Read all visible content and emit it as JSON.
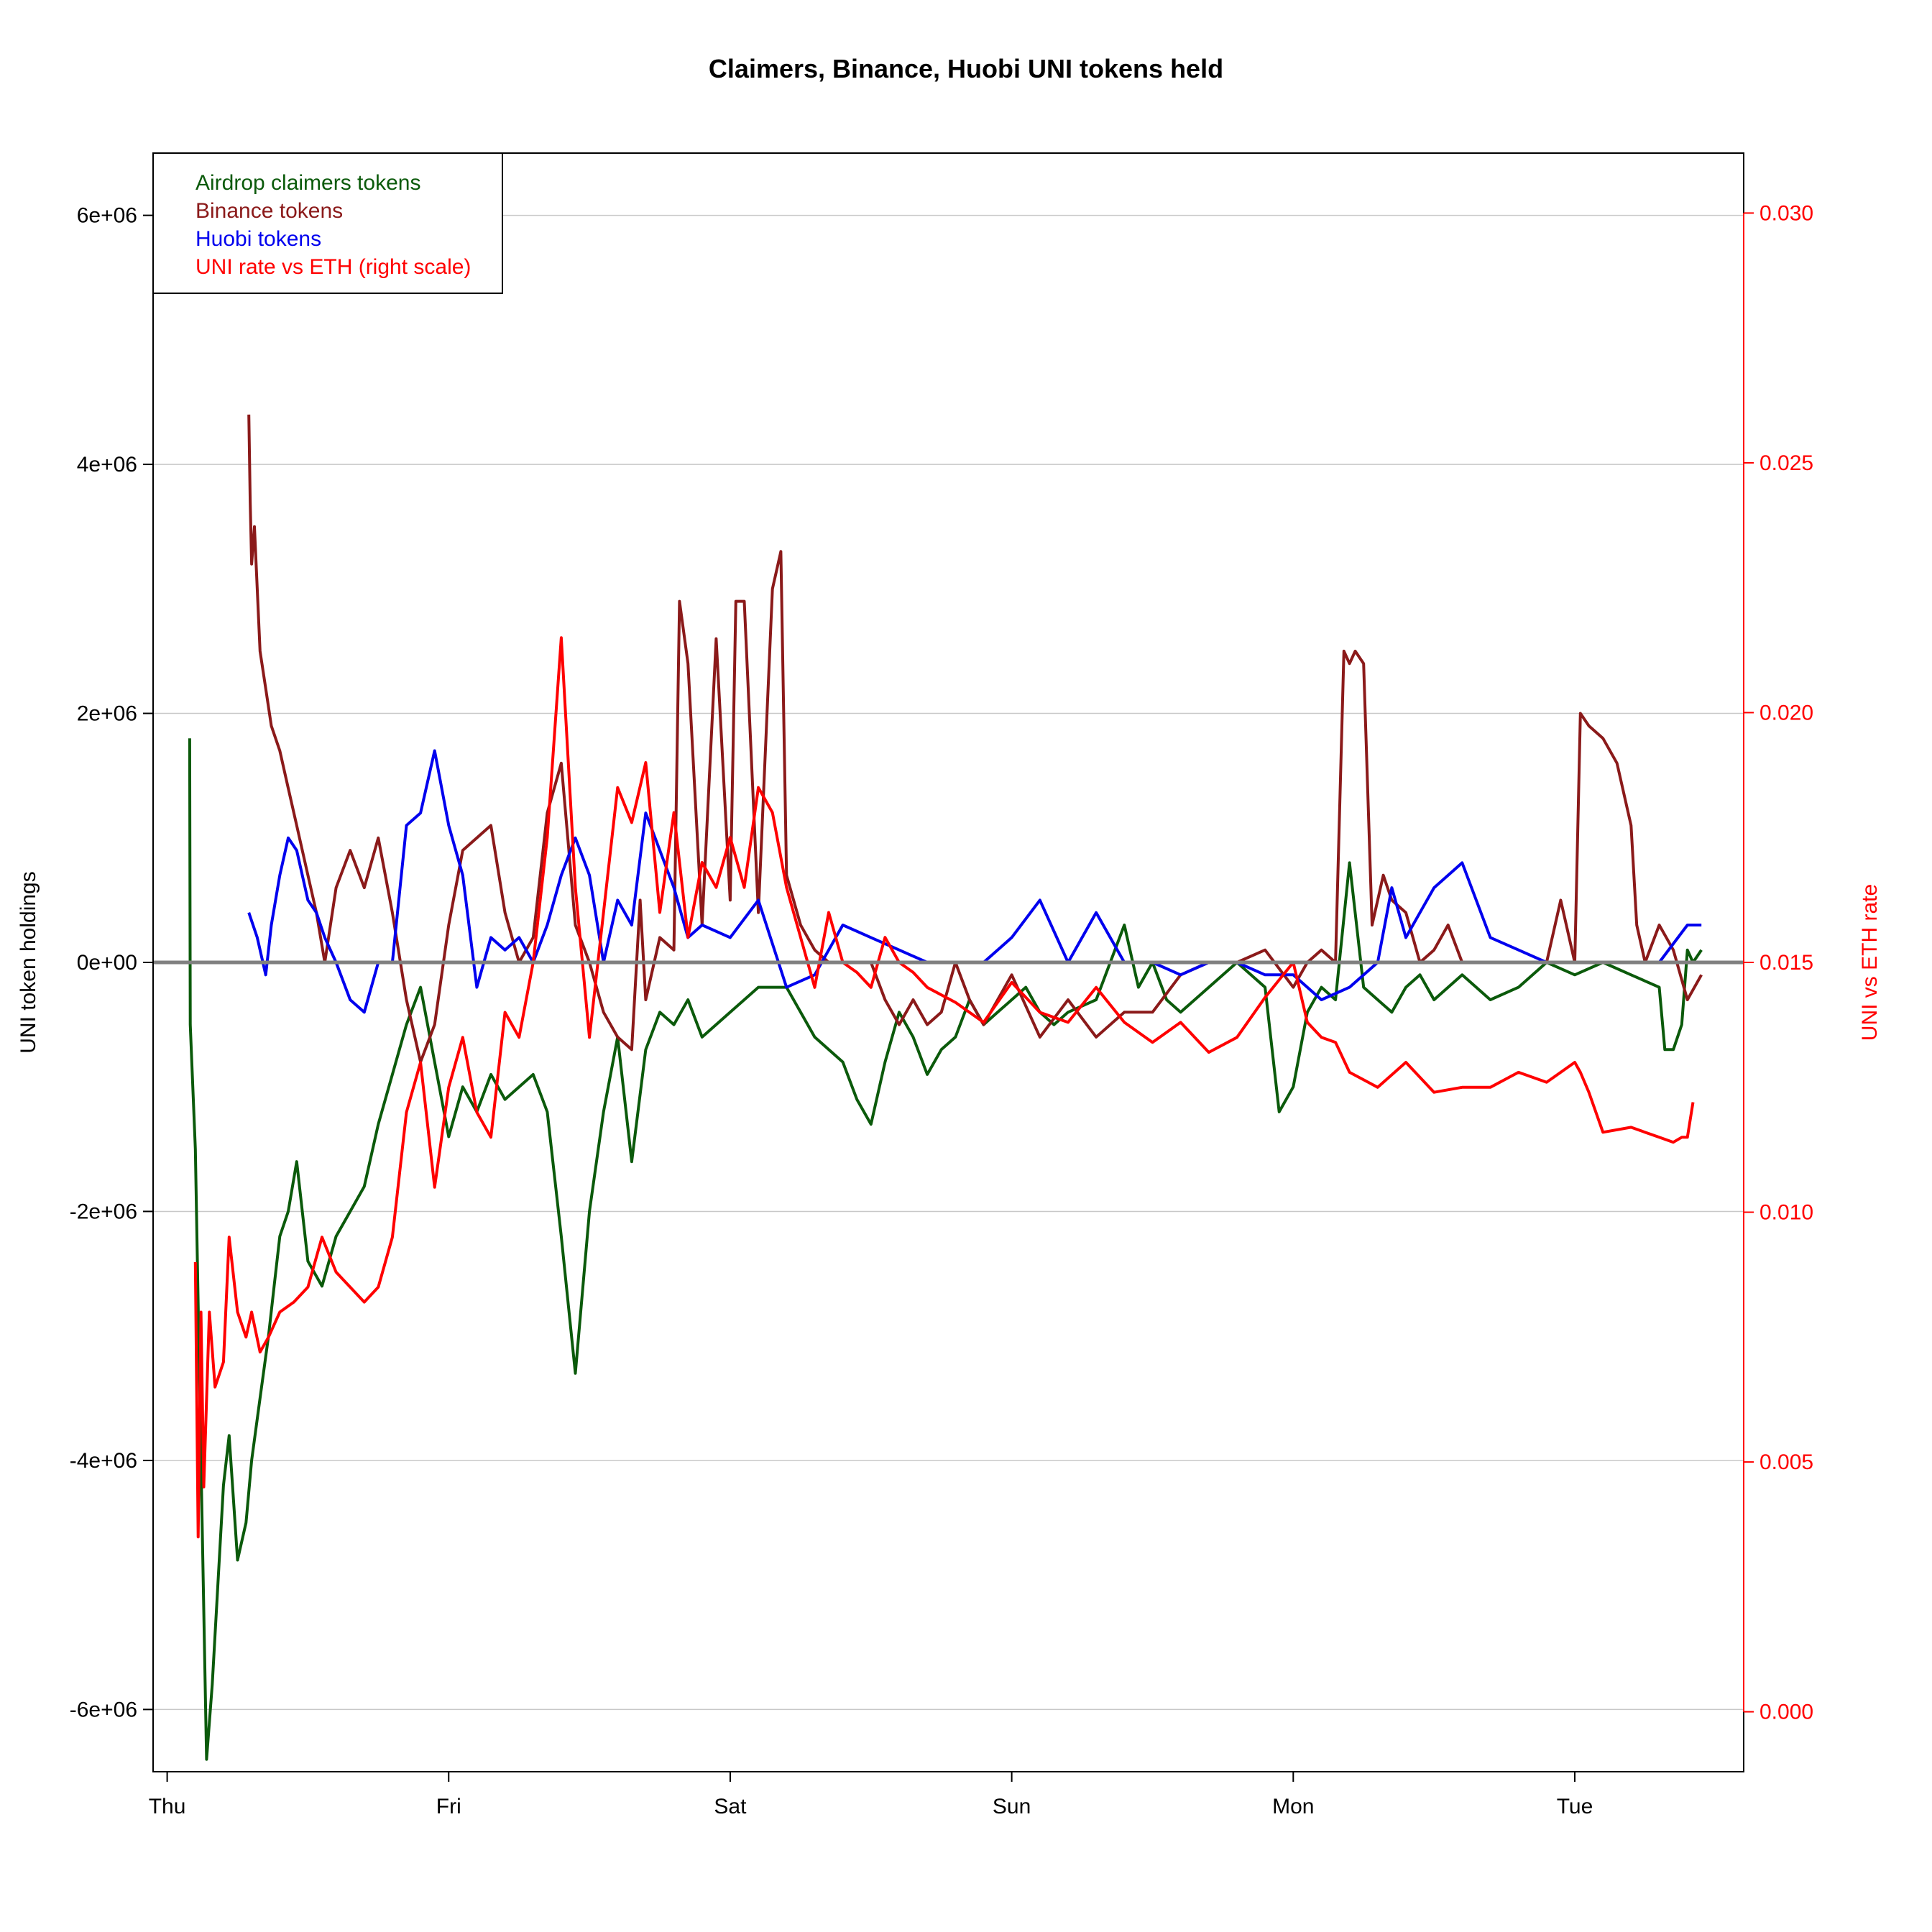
{
  "chart_data": {
    "type": "line",
    "title": "Claimers, Binance, Huobi UNI tokens held",
    "ylabel": "UNI token holdings",
    "ylabel_right": "UNI vs ETH rate",
    "x_ticks": [
      "Thu",
      "Fri",
      "Sat",
      "Sun",
      "Mon",
      "Tue"
    ],
    "xlim": [
      -0.05,
      5.6
    ],
    "ylim": [
      -6500000,
      6500000
    ],
    "y_ticks": [
      -6000000,
      -4000000,
      -2000000,
      0,
      2000000,
      4000000,
      6000000
    ],
    "y_tick_labels": [
      "-6e+06",
      "-4e+06",
      "-2e+06",
      "0e+00",
      "2e+06",
      "4e+06",
      "6e+06"
    ],
    "ylim_right": [
      -0.0012,
      0.0312
    ],
    "y_ticks_right": [
      0.0,
      0.005,
      0.01,
      0.015,
      0.02,
      0.025,
      0.03
    ],
    "y_tick_labels_right": [
      "0.000",
      "0.005",
      "0.010",
      "0.015",
      "0.020",
      "0.025",
      "0.030"
    ],
    "grid": true,
    "zero_line": true,
    "legend_position": "top-left",
    "legend": [
      {
        "label": "Airdrop claimers tokens",
        "color": "#0b5a0b"
      },
      {
        "label": "Binance tokens",
        "color": "#8b1a1a"
      },
      {
        "label": "Huobi tokens",
        "color": "#0000ee"
      },
      {
        "label": "UNI rate vs ETH (right scale)",
        "color": "#ff0000"
      }
    ],
    "series": [
      {
        "name": "Airdrop claimers tokens",
        "color": "#0b5a0b",
        "axis": "left",
        "x": [
          0.08,
          0.082,
          0.1,
          0.12,
          0.14,
          0.16,
          0.18,
          0.2,
          0.22,
          0.25,
          0.28,
          0.3,
          0.33,
          0.36,
          0.38,
          0.4,
          0.43,
          0.46,
          0.5,
          0.55,
          0.6,
          0.65,
          0.7,
          0.75,
          0.8,
          0.85,
          0.9,
          0.95,
          1.0,
          1.05,
          1.1,
          1.15,
          1.2,
          1.25,
          1.3,
          1.35,
          1.4,
          1.45,
          1.5,
          1.55,
          1.6,
          1.65,
          1.7,
          1.75,
          1.8,
          1.85,
          1.9,
          2.0,
          2.1,
          2.2,
          2.3,
          2.4,
          2.45,
          2.5,
          2.55,
          2.6,
          2.65,
          2.7,
          2.75,
          2.8,
          2.85,
          2.9,
          2.95,
          3.0,
          3.05,
          3.1,
          3.15,
          3.2,
          3.3,
          3.4,
          3.45,
          3.5,
          3.55,
          3.6,
          3.7,
          3.8,
          3.9,
          3.95,
          4.0,
          4.05,
          4.1,
          4.15,
          4.2,
          4.25,
          4.3,
          4.35,
          4.4,
          4.45,
          4.5,
          4.6,
          4.7,
          4.8,
          4.9,
          5.0,
          5.1,
          5.2,
          5.3,
          5.32,
          5.35,
          5.38,
          5.4,
          5.42,
          5.45
        ],
        "values": [
          1800000,
          -500000,
          -1500000,
          -4000000,
          -6400000,
          -5800000,
          -5000000,
          -4200000,
          -3800000,
          -4800000,
          -4500000,
          -4000000,
          -3500000,
          -3000000,
          -2600000,
          -2200000,
          -2000000,
          -1600000,
          -2400000,
          -2600000,
          -2200000,
          -2000000,
          -1800000,
          -1300000,
          -900000,
          -500000,
          -200000,
          -800000,
          -1400000,
          -1000000,
          -1200000,
          -900000,
          -1100000,
          -1000000,
          -900000,
          -1200000,
          -2200000,
          -3300000,
          -2000000,
          -1200000,
          -600000,
          -1600000,
          -700000,
          -400000,
          -500000,
          -300000,
          -600000,
          -400000,
          -200000,
          -200000,
          -600000,
          -800000,
          -1100000,
          -1300000,
          -800000,
          -400000,
          -600000,
          -900000,
          -700000,
          -600000,
          -300000,
          -500000,
          -400000,
          -300000,
          -200000,
          -400000,
          -500000,
          -400000,
          -300000,
          300000,
          -200000,
          0,
          -300000,
          -400000,
          -200000,
          0,
          -200000,
          -1200000,
          -1000000,
          -400000,
          -200000,
          -300000,
          800000,
          -200000,
          -300000,
          -400000,
          -200000,
          -100000,
          -300000,
          -100000,
          -300000,
          -200000,
          0,
          -100000,
          0,
          -100000,
          -200000,
          -700000,
          -700000,
          -500000,
          100000,
          0,
          100000
        ]
      },
      {
        "name": "Binance tokens",
        "color": "#8b1a1a",
        "axis": "left",
        "x": [
          0.29,
          0.295,
          0.3,
          0.31,
          0.33,
          0.35,
          0.37,
          0.4,
          0.43,
          0.46,
          0.5,
          0.53,
          0.56,
          0.6,
          0.65,
          0.7,
          0.75,
          0.8,
          0.85,
          0.9,
          0.95,
          1.0,
          1.05,
          1.1,
          1.15,
          1.2,
          1.25,
          1.3,
          1.35,
          1.4,
          1.45,
          1.5,
          1.55,
          1.6,
          1.65,
          1.68,
          1.7,
          1.75,
          1.8,
          1.82,
          1.85,
          1.9,
          1.95,
          2.0,
          2.02,
          2.05,
          2.1,
          2.15,
          2.18,
          2.2,
          2.25,
          2.3,
          2.35,
          2.4,
          2.45,
          2.5,
          2.55,
          2.6,
          2.65,
          2.7,
          2.75,
          2.8,
          2.85,
          2.9,
          3.0,
          3.1,
          3.2,
          3.3,
          3.4,
          3.5,
          3.6,
          3.7,
          3.8,
          3.9,
          4.0,
          4.05,
          4.1,
          4.15,
          4.18,
          4.2,
          4.22,
          4.25,
          4.28,
          4.3,
          4.32,
          4.35,
          4.4,
          4.45,
          4.5,
          4.55,
          4.6,
          4.7,
          4.8,
          4.9,
          4.95,
          5.0,
          5.02,
          5.05,
          5.1,
          5.15,
          5.2,
          5.22,
          5.25,
          5.3,
          5.35,
          5.4,
          5.45
        ],
        "values": [
          4400000,
          3700000,
          3200000,
          3500000,
          2500000,
          2200000,
          1900000,
          1700000,
          1400000,
          1100000,
          700000,
          400000,
          0,
          600000,
          900000,
          600000,
          1000000,
          400000,
          -300000,
          -800000,
          -500000,
          300000,
          900000,
          1000000,
          1100000,
          400000,
          0,
          200000,
          1200000,
          1600000,
          300000,
          0,
          -400000,
          -600000,
          -700000,
          500000,
          -300000,
          200000,
          100000,
          2900000,
          2400000,
          300000,
          2600000,
          500000,
          2900000,
          2900000,
          400000,
          3000000,
          3300000,
          700000,
          300000,
          100000,
          0,
          0,
          0,
          0,
          -300000,
          -500000,
          -300000,
          -500000,
          -400000,
          0,
          -300000,
          -500000,
          -100000,
          -600000,
          -300000,
          -600000,
          -400000,
          -400000,
          -100000,
          0,
          0,
          100000,
          -200000,
          0,
          100000,
          0,
          2500000,
          2400000,
          2500000,
          2400000,
          300000,
          500000,
          700000,
          500000,
          400000,
          0,
          100000,
          300000,
          0,
          0,
          0,
          0,
          500000,
          0,
          2000000,
          1900000,
          1800000,
          1600000,
          1100000,
          300000,
          0,
          300000,
          100000,
          -300000,
          -100000
        ]
      },
      {
        "name": "Huobi tokens",
        "color": "#0000ee",
        "axis": "left",
        "x": [
          0.29,
          0.32,
          0.35,
          0.37,
          0.4,
          0.43,
          0.46,
          0.5,
          0.53,
          0.56,
          0.6,
          0.65,
          0.7,
          0.75,
          0.8,
          0.85,
          0.9,
          0.95,
          1.0,
          1.05,
          1.1,
          1.15,
          1.2,
          1.25,
          1.3,
          1.35,
          1.4,
          1.45,
          1.5,
          1.55,
          1.6,
          1.65,
          1.7,
          1.75,
          1.8,
          1.85,
          1.9,
          2.0,
          2.1,
          2.2,
          2.3,
          2.4,
          2.5,
          2.6,
          2.7,
          2.8,
          2.9,
          3.0,
          3.1,
          3.2,
          3.3,
          3.4,
          3.5,
          3.6,
          3.7,
          3.8,
          3.9,
          4.0,
          4.1,
          4.2,
          4.3,
          4.35,
          4.4,
          4.45,
          4.5,
          4.6,
          4.7,
          4.8,
          4.9,
          5.0,
          5.1,
          5.2,
          5.3,
          5.4,
          5.45
        ],
        "values": [
          400000,
          200000,
          -100000,
          300000,
          700000,
          1000000,
          900000,
          500000,
          400000,
          200000,
          0,
          -300000,
          -400000,
          0,
          0,
          1100000,
          1200000,
          1700000,
          1100000,
          700000,
          -200000,
          200000,
          100000,
          200000,
          0,
          300000,
          700000,
          1000000,
          700000,
          0,
          500000,
          300000,
          1200000,
          900000,
          600000,
          200000,
          300000,
          200000,
          500000,
          -200000,
          -100000,
          300000,
          200000,
          100000,
          0,
          0,
          0,
          200000,
          500000,
          0,
          400000,
          0,
          0,
          -100000,
          0,
          0,
          -100000,
          -100000,
          -300000,
          -200000,
          0,
          600000,
          200000,
          400000,
          600000,
          800000,
          200000,
          100000,
          0,
          0,
          0,
          0,
          0,
          300000,
          300000
        ]
      },
      {
        "name": "UNI rate vs ETH (right scale)",
        "color": "#ff0000",
        "axis": "right",
        "x": [
          0.1,
          0.11,
          0.12,
          0.13,
          0.15,
          0.17,
          0.2,
          0.22,
          0.25,
          0.28,
          0.3,
          0.33,
          0.36,
          0.4,
          0.45,
          0.5,
          0.55,
          0.6,
          0.65,
          0.7,
          0.75,
          0.8,
          0.85,
          0.9,
          0.95,
          1.0,
          1.05,
          1.1,
          1.15,
          1.2,
          1.25,
          1.3,
          1.35,
          1.4,
          1.45,
          1.5,
          1.55,
          1.6,
          1.65,
          1.7,
          1.75,
          1.8,
          1.85,
          1.9,
          1.95,
          2.0,
          2.05,
          2.1,
          2.15,
          2.2,
          2.25,
          2.3,
          2.35,
          2.4,
          2.45,
          2.5,
          2.55,
          2.6,
          2.65,
          2.7,
          2.8,
          2.9,
          3.0,
          3.1,
          3.2,
          3.3,
          3.4,
          3.5,
          3.6,
          3.7,
          3.8,
          3.9,
          4.0,
          4.05,
          4.1,
          4.15,
          4.2,
          4.3,
          4.4,
          4.5,
          4.6,
          4.7,
          4.8,
          4.9,
          5.0,
          5.02,
          5.05,
          5.1,
          5.2,
          5.3,
          5.35,
          5.38,
          5.4,
          5.42
        ],
        "values": [
          0.009,
          0.0035,
          0.008,
          0.0045,
          0.008,
          0.0065,
          0.007,
          0.0095,
          0.008,
          0.0075,
          0.008,
          0.0072,
          0.0075,
          0.008,
          0.0082,
          0.0085,
          0.0095,
          0.0088,
          0.0085,
          0.0082,
          0.0085,
          0.0095,
          0.012,
          0.013,
          0.0105,
          0.0125,
          0.0135,
          0.012,
          0.0115,
          0.014,
          0.0135,
          0.015,
          0.0175,
          0.0215,
          0.0165,
          0.0135,
          0.016,
          0.0185,
          0.0178,
          0.019,
          0.016,
          0.018,
          0.0155,
          0.017,
          0.0165,
          0.0175,
          0.0165,
          0.0185,
          0.018,
          0.0165,
          0.0155,
          0.0145,
          0.016,
          0.015,
          0.0148,
          0.0145,
          0.0155,
          0.015,
          0.0148,
          0.0145,
          0.0142,
          0.0138,
          0.0146,
          0.014,
          0.0138,
          0.0145,
          0.0138,
          0.0134,
          0.0138,
          0.0132,
          0.0135,
          0.0143,
          0.015,
          0.0138,
          0.0135,
          0.0134,
          0.0128,
          0.0125,
          0.013,
          0.0124,
          0.0125,
          0.0125,
          0.0128,
          0.0126,
          0.013,
          0.0128,
          0.0124,
          0.0116,
          0.0117,
          0.0115,
          0.0114,
          0.0115,
          0.0115,
          0.0122
        ]
      }
    ]
  }
}
